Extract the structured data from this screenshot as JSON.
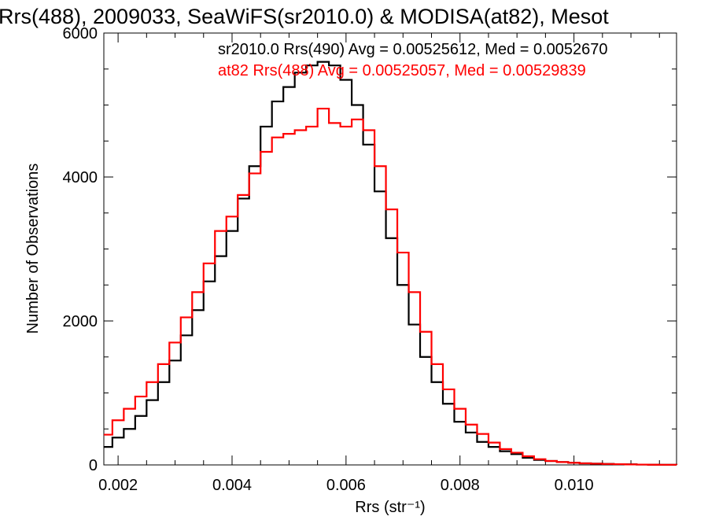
{
  "chart_data": {
    "type": "line",
    "title": "Rrs(488), 2009033, SeaWiFS(sr2010.0) & MODISA(at82), Mesot",
    "xlabel": "Rrs (str⁻¹)",
    "ylabel": "Number of Observations",
    "xlim": [
      0.00175,
      0.0118
    ],
    "ylim": [
      0,
      6000
    ],
    "xticks": [
      0.002,
      0.004,
      0.006,
      0.008,
      0.01
    ],
    "xtick_labels": [
      "0.002",
      "0.004",
      "0.006",
      "0.008",
      "0.010"
    ],
    "yticks": [
      0,
      2000,
      4000,
      6000
    ],
    "ytick_labels": [
      "0",
      "2000",
      "4000",
      "6000"
    ],
    "grid": false,
    "series": [
      {
        "name": "sr2010.0 Rrs(490) Avg = 0.00525612, Med = 0.0052670",
        "color": "#000000",
        "x": [
          0.00175,
          0.0019,
          0.0021,
          0.0023,
          0.0025,
          0.0027,
          0.0029,
          0.0031,
          0.0033,
          0.0035,
          0.0037,
          0.0039,
          0.0041,
          0.0043,
          0.0045,
          0.0047,
          0.0049,
          0.0051,
          0.0053,
          0.0055,
          0.0057,
          0.0059,
          0.0061,
          0.0063,
          0.0065,
          0.0067,
          0.0069,
          0.0071,
          0.0073,
          0.0075,
          0.0077,
          0.0079,
          0.0081,
          0.0083,
          0.0085,
          0.0087,
          0.0089,
          0.0091,
          0.0093,
          0.0095,
          0.0097,
          0.0099,
          0.0101,
          0.0103,
          0.0105,
          0.0107,
          0.0109,
          0.0111,
          0.0113,
          0.0115,
          0.0118
        ],
        "y": [
          250,
          380,
          500,
          680,
          900,
          1150,
          1450,
          1800,
          2150,
          2550,
          2900,
          3250,
          3700,
          4150,
          4700,
          5050,
          5250,
          5450,
          5550,
          5600,
          5550,
          5350,
          5000,
          4450,
          3800,
          3150,
          2500,
          1950,
          1500,
          1150,
          850,
          600,
          450,
          320,
          250,
          190,
          150,
          100,
          70,
          55,
          40,
          30,
          22,
          18,
          14,
          10,
          8,
          5,
          3,
          2,
          1
        ]
      },
      {
        "name": "at82 Rrs(488) Avg = 0.00525057, Med = 0.00529839",
        "color": "#ff0000",
        "x": [
          0.00175,
          0.0019,
          0.0021,
          0.0023,
          0.0025,
          0.0027,
          0.0029,
          0.0031,
          0.0033,
          0.0035,
          0.0037,
          0.0039,
          0.0041,
          0.0043,
          0.0045,
          0.0047,
          0.0049,
          0.0051,
          0.0053,
          0.0055,
          0.0057,
          0.0059,
          0.0061,
          0.0063,
          0.0065,
          0.0067,
          0.0069,
          0.0071,
          0.0073,
          0.0075,
          0.0077,
          0.0079,
          0.0081,
          0.0083,
          0.0085,
          0.0087,
          0.0089,
          0.0091,
          0.0093,
          0.0095,
          0.0097,
          0.0099,
          0.0101,
          0.0103,
          0.0105,
          0.0107,
          0.0109,
          0.0111,
          0.0113,
          0.0115,
          0.0118
        ],
        "y": [
          420,
          620,
          780,
          950,
          1150,
          1400,
          1700,
          2050,
          2400,
          2800,
          3250,
          3450,
          3750,
          4050,
          4350,
          4550,
          4600,
          4650,
          4700,
          4950,
          4750,
          4700,
          4800,
          4650,
          4150,
          3550,
          2950,
          2400,
          1850,
          1400,
          1050,
          780,
          560,
          430,
          310,
          220,
          170,
          120,
          80,
          55,
          40,
          30,
          22,
          17,
          13,
          10,
          7,
          5,
          3,
          2,
          1
        ]
      }
    ]
  }
}
